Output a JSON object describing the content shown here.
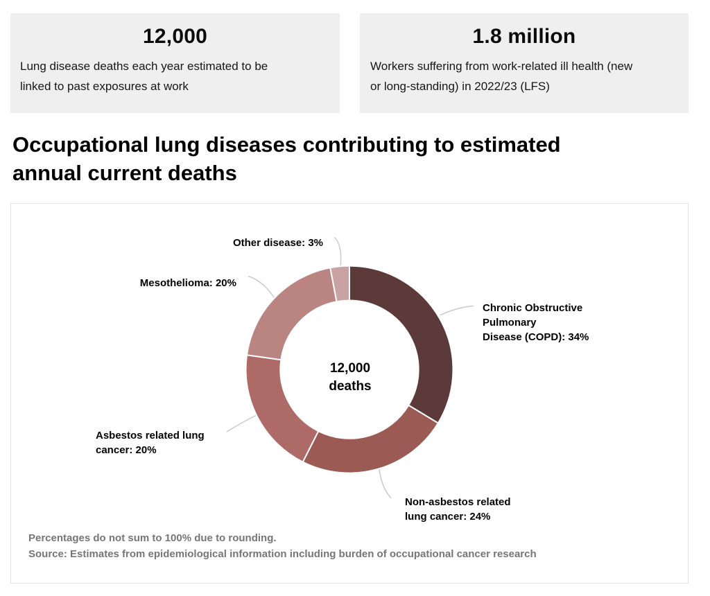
{
  "stats": [
    {
      "value": "12,000",
      "description": "Lung disease deaths each year estimated to be\nlinked to past exposures at work"
    },
    {
      "value": "1.8 million",
      "description": "Workers suffering from work-related ill health (new\nor long-standing) in 2022/23 (LFS)"
    }
  ],
  "heading": "Occupational lung diseases contributing to estimated\nannual current deaths",
  "chart_data": {
    "type": "pie",
    "subtype": "donut",
    "title": "Occupational lung diseases contributing to estimated annual current deaths",
    "center_label": "12,000\ndeaths",
    "start_angle": "12 o'clock",
    "direction": "clockwise",
    "legend_position": "callout-labels",
    "segments": [
      {
        "id": "copd",
        "name": "Chronic Obstructive Pulmonary Disease (COPD)",
        "label": "Chronic Obstructive\nPulmonary\nDisease (COPD): 34%",
        "value_pct": 34,
        "color": "#5d3a3a"
      },
      {
        "id": "non-asbestos-lung-cancer",
        "name": "Non-asbestos related lung cancer",
        "label": "Non-asbestos related\nlung cancer: 24%",
        "value_pct": 24,
        "color": "#9c5a55"
      },
      {
        "id": "asbestos-lung-cancer",
        "name": "Asbestos related lung cancer",
        "label": "Asbestos related lung\ncancer: 20%",
        "value_pct": 20,
        "color": "#ae6a66"
      },
      {
        "id": "mesothelioma",
        "name": "Mesothelioma",
        "label": "Mesothelioma: 20%",
        "value_pct": 20,
        "color": "#ba8480"
      },
      {
        "id": "other-disease",
        "name": "Other disease",
        "label": "Other disease: 3%",
        "value_pct": 3,
        "color": "#c9a2a3"
      }
    ],
    "footnotes": [
      "Percentages do not sum to 100% due to rounding.",
      "Source: Estimates from epidemiological information including burden of occupational cancer research"
    ],
    "colors": {
      "separator": "#ffffff",
      "leader_line": "#c9c9c9",
      "footnote_text": "#767676"
    }
  }
}
